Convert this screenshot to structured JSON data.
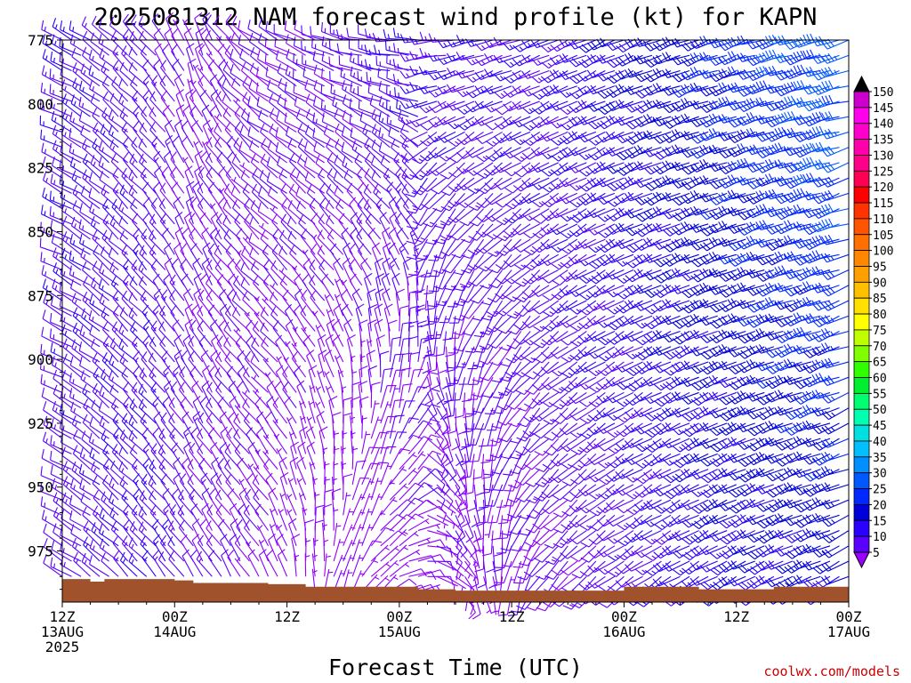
{
  "title": "2025081312 NAM forecast wind profile (kt) for KAPN",
  "credit": "coolwx.com/models",
  "chart_data": {
    "type": "wind-barb-time-height",
    "title": "2025081312 NAM forecast wind profile (kt) for KAPN",
    "xlabel": "Forecast Time (UTC)",
    "ylabel": "",
    "units": "kt",
    "y_axis": {
      "ticks": [
        775,
        800,
        825,
        850,
        875,
        900,
        925,
        950,
        975
      ],
      "range": [
        775,
        995
      ],
      "direction": "pressure-decreasing-upward"
    },
    "x_axis": {
      "range_hours": [
        0,
        84
      ],
      "ticks": [
        {
          "hour": 0,
          "line1": "12Z",
          "line2": "13AUG",
          "line3": "2025"
        },
        {
          "hour": 12,
          "line1": "00Z",
          "line2": "14AUG",
          "line3": ""
        },
        {
          "hour": 24,
          "line1": "12Z",
          "line2": "",
          "line3": ""
        },
        {
          "hour": 36,
          "line1": "00Z",
          "line2": "15AUG",
          "line3": ""
        },
        {
          "hour": 48,
          "line1": "12Z",
          "line2": "",
          "line3": ""
        },
        {
          "hour": 60,
          "line1": "00Z",
          "line2": "16AUG",
          "line3": ""
        },
        {
          "hour": 72,
          "line1": "12Z",
          "line2": "",
          "line3": ""
        },
        {
          "hour": 84,
          "line1": "00Z",
          "line2": "17AUG",
          "line3": ""
        }
      ]
    },
    "colorbar": {
      "levels": [
        5,
        10,
        15,
        20,
        25,
        30,
        35,
        40,
        45,
        50,
        55,
        60,
        65,
        70,
        75,
        80,
        85,
        90,
        95,
        100,
        105,
        110,
        115,
        120,
        125,
        130,
        135,
        140,
        145,
        150
      ],
      "colors": [
        "#8a00ff",
        "#5a00ff",
        "#2a00ff",
        "#0000d8",
        "#0028ff",
        "#0058ff",
        "#0090ff",
        "#00c0ff",
        "#00e0e0",
        "#00ffb0",
        "#00ff70",
        "#00f030",
        "#30ff00",
        "#80ff00",
        "#c0ff00",
        "#ffff00",
        "#ffe000",
        "#ffc000",
        "#ffa000",
        "#ff8800",
        "#ff7000",
        "#ff5500",
        "#ff3300",
        "#ff0000",
        "#ff0055",
        "#ff0088",
        "#ff00aa",
        "#ff00cc",
        "#ff00ee",
        "#cc00cc"
      ],
      "over_color": "#000000",
      "under_color": "#9a00ff"
    },
    "terrain": {
      "color": "#a0522d",
      "surface_pressure": [
        {
          "hour": 0,
          "p": 986
        },
        {
          "hour": 3,
          "p": 987
        },
        {
          "hour": 4.5,
          "p": 986
        },
        {
          "hour": 12,
          "p": 986.5
        },
        {
          "hour": 14,
          "p": 987.5
        },
        {
          "hour": 22,
          "p": 988
        },
        {
          "hour": 26,
          "p": 989
        },
        {
          "hour": 38,
          "p": 990
        },
        {
          "hour": 42,
          "p": 990.5
        },
        {
          "hour": 56,
          "p": 990.5
        },
        {
          "hour": 60,
          "p": 989
        },
        {
          "hour": 68,
          "p": 990
        },
        {
          "hour": 76,
          "p": 989
        },
        {
          "hour": 82,
          "p": 989
        },
        {
          "hour": 84,
          "p": 988.5
        }
      ]
    },
    "barb_grid": {
      "time_step_hours": 1,
      "pressure_levels": [
        775,
        781,
        787,
        793,
        799,
        805,
        811,
        817,
        823,
        829,
        835,
        841,
        847,
        853,
        859,
        865,
        871,
        877,
        883,
        889,
        895,
        901,
        907,
        913,
        919,
        925,
        931,
        937,
        943,
        949,
        955,
        961,
        967,
        973,
        979,
        985,
        991
      ],
      "wind_keyframes": [
        {
          "hour": 0,
          "upper": {
            "dir": 295,
            "spd": 15
          },
          "lower": {
            "dir": 300,
            "spd": 12
          }
        },
        {
          "hour": 10,
          "upper": {
            "dir": 320,
            "spd": 12
          },
          "lower": {
            "dir": 320,
            "spd": 15
          }
        },
        {
          "hour": 14,
          "upper": {
            "dir": 340,
            "spd": 8
          },
          "lower": {
            "dir": 325,
            "spd": 12
          }
        },
        {
          "hour": 22,
          "upper": {
            "dir": 300,
            "spd": 10
          },
          "lower": {
            "dir": 330,
            "spd": 8
          }
        },
        {
          "hour": 30,
          "upper": {
            "dir": 285,
            "spd": 12
          },
          "lower": {
            "dir": 20,
            "spd": 5
          }
        },
        {
          "hour": 38,
          "upper": {
            "dir": 270,
            "spd": 15
          },
          "lower": {
            "dir": 80,
            "spd": 8
          }
        },
        {
          "hour": 44,
          "upper": {
            "dir": 255,
            "spd": 15
          },
          "lower": {
            "dir": 160,
            "spd": 8
          }
        },
        {
          "hour": 52,
          "upper": {
            "dir": 245,
            "spd": 15
          },
          "lower": {
            "dir": 220,
            "spd": 10
          }
        },
        {
          "hour": 60,
          "upper": {
            "dir": 245,
            "spd": 20
          },
          "lower": {
            "dir": 235,
            "spd": 12
          }
        },
        {
          "hour": 70,
          "upper": {
            "dir": 250,
            "spd": 25
          },
          "lower": {
            "dir": 240,
            "spd": 18
          }
        },
        {
          "hour": 84,
          "upper": {
            "dir": 255,
            "spd": 33
          },
          "lower": {
            "dir": 245,
            "spd": 22
          }
        }
      ]
    }
  }
}
